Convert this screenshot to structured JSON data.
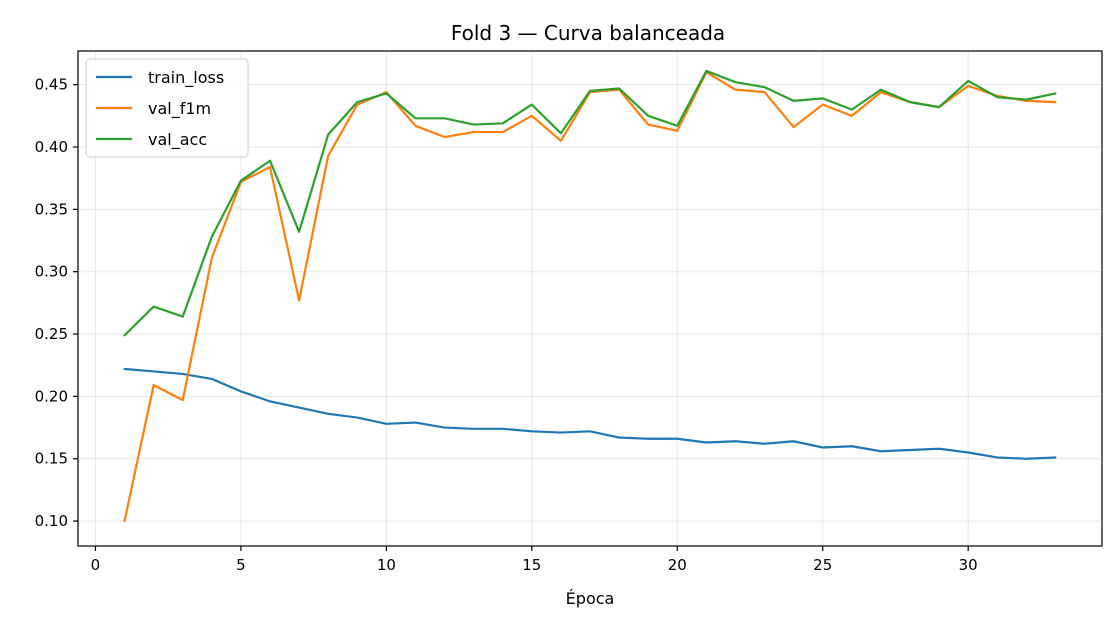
{
  "chart_data": {
    "type": "line",
    "title": "Fold 3 — Curva balanceada",
    "xlabel": "Época",
    "ylabel": "",
    "xlim": [
      -0.6,
      34.6
    ],
    "ylim": [
      0.08,
      0.477
    ],
    "xticks": [
      0,
      5,
      10,
      15,
      20,
      25,
      30
    ],
    "yticks": [
      0.1,
      0.15,
      0.2,
      0.25,
      0.3,
      0.35,
      0.4,
      0.45
    ],
    "grid": true,
    "legend_position": "upper-left",
    "x": [
      1,
      2,
      3,
      4,
      5,
      6,
      7,
      8,
      9,
      10,
      11,
      12,
      13,
      14,
      15,
      16,
      17,
      18,
      19,
      20,
      21,
      22,
      23,
      24,
      25,
      26,
      27,
      28,
      29,
      30,
      31,
      32,
      33
    ],
    "series": [
      {
        "name": "train_loss",
        "color": "#1f77b4",
        "values": [
          0.222,
          0.22,
          0.218,
          0.214,
          0.204,
          0.196,
          0.191,
          0.186,
          0.183,
          0.178,
          0.179,
          0.175,
          0.174,
          0.174,
          0.172,
          0.171,
          0.172,
          0.167,
          0.166,
          0.166,
          0.163,
          0.164,
          0.162,
          0.164,
          0.159,
          0.16,
          0.156,
          0.157,
          0.158,
          0.155,
          0.151,
          0.15,
          0.151
        ]
      },
      {
        "name": "val_f1m",
        "color": "#ff7f0e",
        "values": [
          0.1,
          0.209,
          0.197,
          0.311,
          0.372,
          0.384,
          0.277,
          0.393,
          0.434,
          0.444,
          0.417,
          0.408,
          0.412,
          0.412,
          0.425,
          0.405,
          0.444,
          0.446,
          0.418,
          0.413,
          0.46,
          0.446,
          0.444,
          0.416,
          0.434,
          0.425,
          0.444,
          0.436,
          0.432,
          0.449,
          0.441,
          0.437,
          0.436
        ]
      },
      {
        "name": "val_acc",
        "color": "#2ca02c",
        "values": [
          0.249,
          0.272,
          0.264,
          0.328,
          0.373,
          0.389,
          0.332,
          0.41,
          0.436,
          0.443,
          0.423,
          0.423,
          0.418,
          0.419,
          0.434,
          0.411,
          0.445,
          0.447,
          0.425,
          0.417,
          0.461,
          0.452,
          0.448,
          0.437,
          0.439,
          0.43,
          0.446,
          0.436,
          0.432,
          0.453,
          0.44,
          0.438,
          0.443
        ]
      }
    ]
  }
}
